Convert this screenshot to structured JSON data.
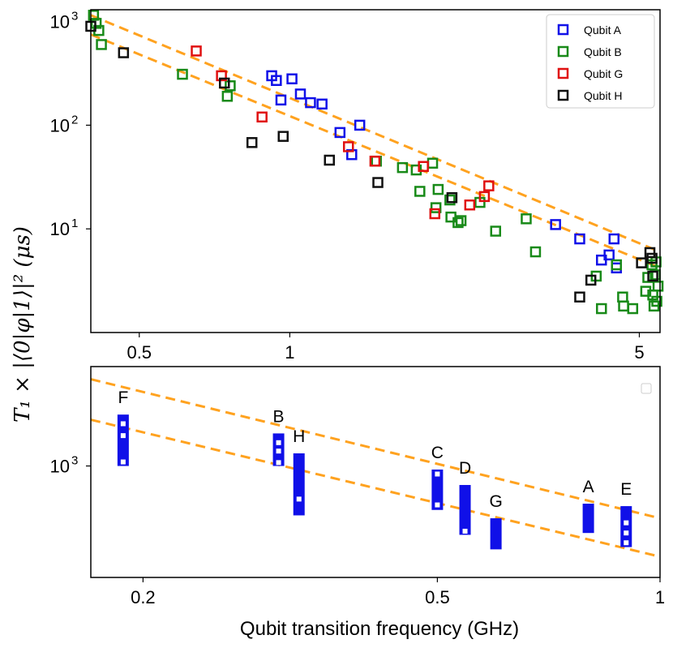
{
  "colors": {
    "qubit_a": "#1010e8",
    "qubit_b": "#188a18",
    "qubit_g": "#e01010",
    "qubit_h": "#101010",
    "bounds": "#ffa21f",
    "bars": "#1010e8"
  },
  "ylabel": "T₁ × |⟨0|φ|1⟩|² (μs)",
  "xlabel": "Qubit transition frequency (GHz)",
  "chart_data": [
    {
      "type": "scatter",
      "x_scale": "log",
      "y_scale": "log",
      "xlim": [
        0.4,
        5.5
      ],
      "ylim": [
        1,
        1300
      ],
      "x_ticks": [
        {
          "value": 0.5,
          "label": "0.5"
        },
        {
          "value": 1,
          "label": "1"
        },
        {
          "value": 5,
          "label": "5"
        }
      ],
      "y_ticks": [
        {
          "value": 10,
          "label": "10",
          "sup": "1"
        },
        {
          "value": 100,
          "label": "10",
          "sup": "2"
        },
        {
          "value": 1000,
          "label": "10",
          "sup": "3"
        }
      ],
      "legend_position": "top-right",
      "series": [
        {
          "name": "Qubit A",
          "color_key": "qubit_a",
          "points": [
            [
              0.92,
              300
            ],
            [
              0.94,
              270
            ],
            [
              0.96,
              175
            ],
            [
              1.01,
              280
            ],
            [
              1.05,
              200
            ],
            [
              1.1,
              165
            ],
            [
              1.16,
              160
            ],
            [
              1.26,
              85
            ],
            [
              1.33,
              52
            ],
            [
              1.38,
              100
            ],
            [
              3.4,
              11
            ],
            [
              3.8,
              8
            ],
            [
              4.2,
              5
            ],
            [
              4.35,
              5.6
            ],
            [
              4.45,
              8
            ],
            [
              4.5,
              4.2
            ]
          ]
        },
        {
          "name": "Qubit B",
          "color_key": "qubit_b",
          "points": [
            [
              0.405,
              1150
            ],
            [
              0.41,
              960
            ],
            [
              0.415,
              820
            ],
            [
              0.42,
              600
            ],
            [
              0.61,
              310
            ],
            [
              0.75,
              190
            ],
            [
              0.76,
              240
            ],
            [
              1.49,
              45
            ],
            [
              1.68,
              39
            ],
            [
              1.79,
              37
            ],
            [
              1.82,
              23
            ],
            [
              1.93,
              43
            ],
            [
              1.96,
              16
            ],
            [
              1.98,
              24
            ],
            [
              2.09,
              19
            ],
            [
              2.1,
              13
            ],
            [
              2.17,
              11.5
            ],
            [
              2.2,
              12
            ],
            [
              2.4,
              18
            ],
            [
              2.58,
              9.5
            ],
            [
              2.97,
              12.5
            ],
            [
              3.1,
              6
            ],
            [
              4.1,
              3.5
            ],
            [
              4.2,
              1.7
            ],
            [
              4.5,
              4.5
            ],
            [
              4.63,
              2.2
            ],
            [
              4.65,
              1.8
            ],
            [
              4.85,
              1.7
            ],
            [
              5.15,
              2.5
            ],
            [
              5.2,
              3.4
            ],
            [
              5.3,
              4.5
            ],
            [
              5.32,
              2.3
            ],
            [
              5.35,
              1.8
            ],
            [
              5.38,
              3.6
            ],
            [
              5.4,
              4.8
            ],
            [
              5.42,
              2.0
            ],
            [
              5.45,
              2.8
            ]
          ]
        },
        {
          "name": "Qubit G",
          "color_key": "qubit_g",
          "points": [
            [
              0.65,
              520
            ],
            [
              0.73,
              300
            ],
            [
              0.88,
              120
            ],
            [
              1.31,
              62
            ],
            [
              1.48,
              45
            ],
            [
              1.85,
              40
            ],
            [
              1.95,
              14
            ],
            [
              2.29,
              17
            ],
            [
              2.45,
              20.5
            ],
            [
              2.5,
              26
            ]
          ]
        },
        {
          "name": "Qubit H",
          "color_key": "qubit_h",
          "points": [
            [
              0.4,
              900
            ],
            [
              0.465,
              500
            ],
            [
              0.74,
              255
            ],
            [
              0.84,
              68
            ],
            [
              0.97,
              78
            ],
            [
              1.2,
              46
            ],
            [
              1.5,
              28
            ],
            [
              2.11,
              20
            ],
            [
              3.8,
              2.2
            ],
            [
              4.0,
              3.2
            ],
            [
              5.05,
              4.7
            ],
            [
              5.25,
              5.9
            ],
            [
              5.3,
              5.2
            ],
            [
              5.32,
              3.5
            ]
          ]
        }
      ],
      "bounds": [
        {
          "points": [
            [
              0.4,
              1150
            ],
            [
              5.5,
              6
            ]
          ]
        },
        {
          "points": [
            [
              0.4,
              750
            ],
            [
              5.5,
              4.2
            ]
          ]
        }
      ]
    },
    {
      "type": "bar",
      "x_scale": "log",
      "y_scale": "log",
      "xlim": [
        0.17,
        1.0
      ],
      "ylim": [
        200,
        4200
      ],
      "x_ticks": [
        {
          "value": 0.2,
          "label": "0.2"
        },
        {
          "value": 0.5,
          "label": "0.5"
        },
        {
          "value": 1,
          "label": "1"
        }
      ],
      "y_ticks": [
        {
          "value": 1000,
          "label": "10",
          "sup": "3"
        }
      ],
      "bars": [
        {
          "label": "F",
          "x": 0.188,
          "low": 1000,
          "high": 2100,
          "markers": [
            1060,
            1550,
            1840
          ]
        },
        {
          "label": "B",
          "x": 0.305,
          "low": 1000,
          "high": 1600,
          "markers": [
            1050,
            1240,
            1400
          ]
        },
        {
          "label": "H",
          "x": 0.325,
          "low": 490,
          "high": 1200,
          "markers": [
            620
          ]
        },
        {
          "label": "C",
          "x": 0.5,
          "low": 530,
          "high": 950,
          "markers": [
            570,
            890
          ]
        },
        {
          "label": "D",
          "x": 0.545,
          "low": 370,
          "high": 760,
          "markers": [
            390
          ]
        },
        {
          "label": "G",
          "x": 0.6,
          "low": 300,
          "high": 470,
          "markers": []
        },
        {
          "label": "A",
          "x": 0.8,
          "low": 380,
          "high": 580,
          "markers": []
        },
        {
          "label": "E",
          "x": 0.9,
          "low": 310,
          "high": 560,
          "markers": [
            330,
            380,
            440
          ]
        }
      ],
      "bounds": [
        {
          "points": [
            [
              0.17,
              3500
            ],
            [
              1.0,
              470
            ]
          ]
        },
        {
          "points": [
            [
              0.17,
              1950
            ],
            [
              1.0,
              270
            ]
          ]
        }
      ]
    }
  ]
}
